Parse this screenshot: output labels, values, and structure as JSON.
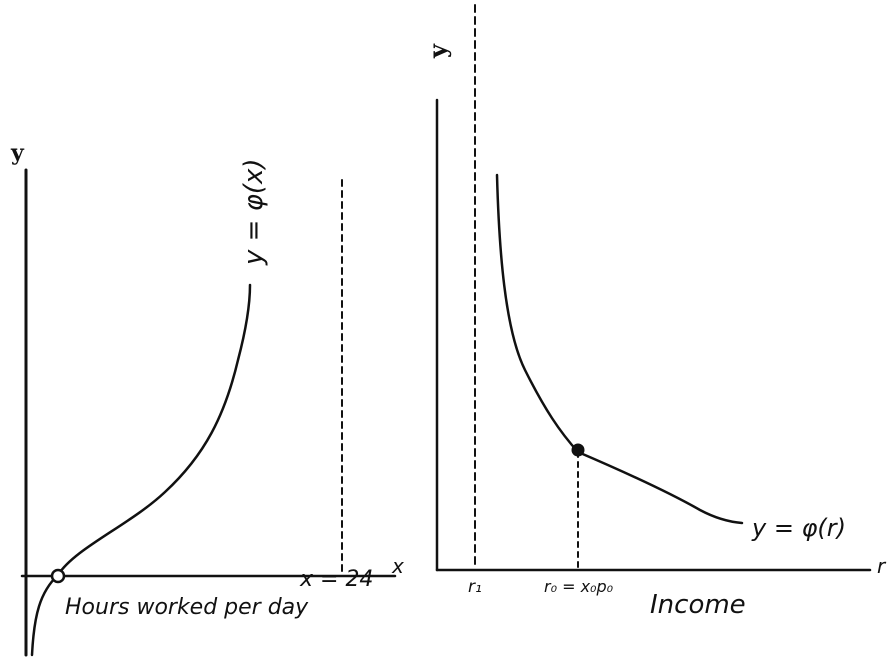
{
  "left_panel": {
    "y_axis_label": "y",
    "x_axis_label": "x",
    "curve_label": "y = φ(x)",
    "asymptote_label": "x = 24",
    "axis_caption": "Hours worked per day"
  },
  "right_panel": {
    "y_axis_label": "y",
    "x_axis_label": "r",
    "curve_label": "y = φ(r)",
    "asymptote_label": "r₁",
    "point_label": "r₀ = x₀p₀",
    "axis_caption": "Income"
  },
  "colors": {
    "ink": "#111111",
    "background": "#ffffff"
  }
}
